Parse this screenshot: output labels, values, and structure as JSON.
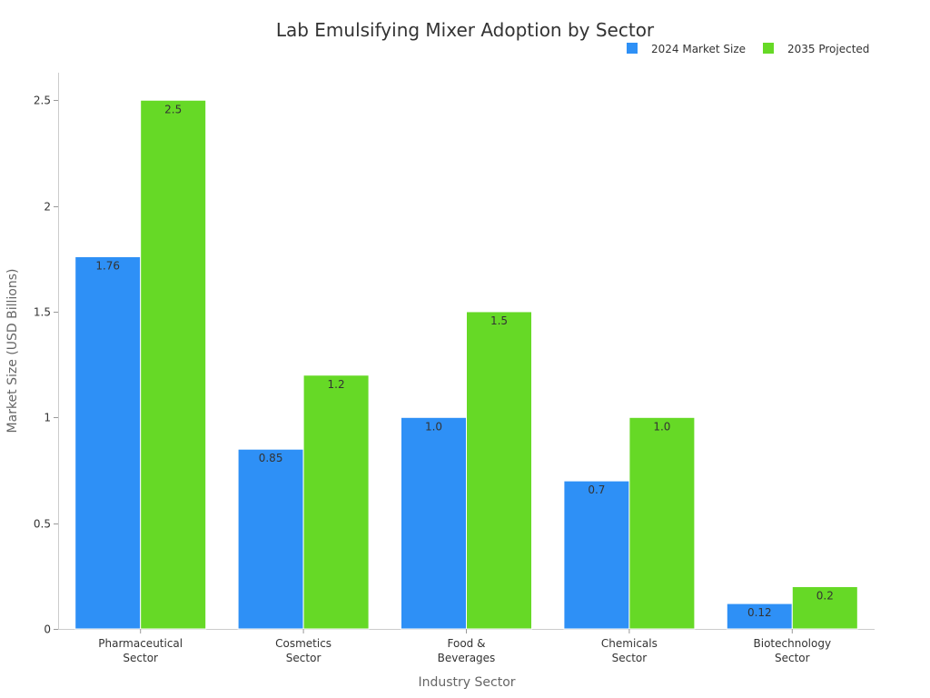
{
  "chart_data": {
    "type": "bar",
    "title": "Lab Emulsifying Mixer Adoption by Sector",
    "xlabel": "Industry Sector",
    "ylabel": "Market Size (USD Billions)",
    "categories": [
      [
        "Pharmaceutical",
        "Sector"
      ],
      [
        "Cosmetics",
        "Sector"
      ],
      [
        "Food &",
        "Beverages"
      ],
      [
        "Chemicals",
        "Sector"
      ],
      [
        "Biotechnology",
        "Sector"
      ]
    ],
    "series": [
      {
        "name": "2024 Market Size",
        "color": "#2e90f6",
        "values": [
          1.76,
          0.85,
          1.0,
          0.7,
          0.12
        ],
        "labels": [
          "1.76",
          "0.85",
          "1.0",
          "0.7",
          "0.12"
        ]
      },
      {
        "name": "2035 Projected",
        "color": "#66d926",
        "values": [
          2.5,
          1.2,
          1.5,
          1.0,
          0.2
        ],
        "labels": [
          "2.5",
          "1.2",
          "1.5",
          "1.0",
          "0.2"
        ]
      }
    ],
    "ylim": [
      0,
      2.63
    ],
    "yticks": [
      0,
      0.5,
      1,
      1.5,
      2,
      2.5
    ],
    "ytick_labels": [
      "0",
      "0.5",
      "1",
      "1.5",
      "2",
      "2.5"
    ],
    "grid": false,
    "legend_position": "top-right"
  }
}
